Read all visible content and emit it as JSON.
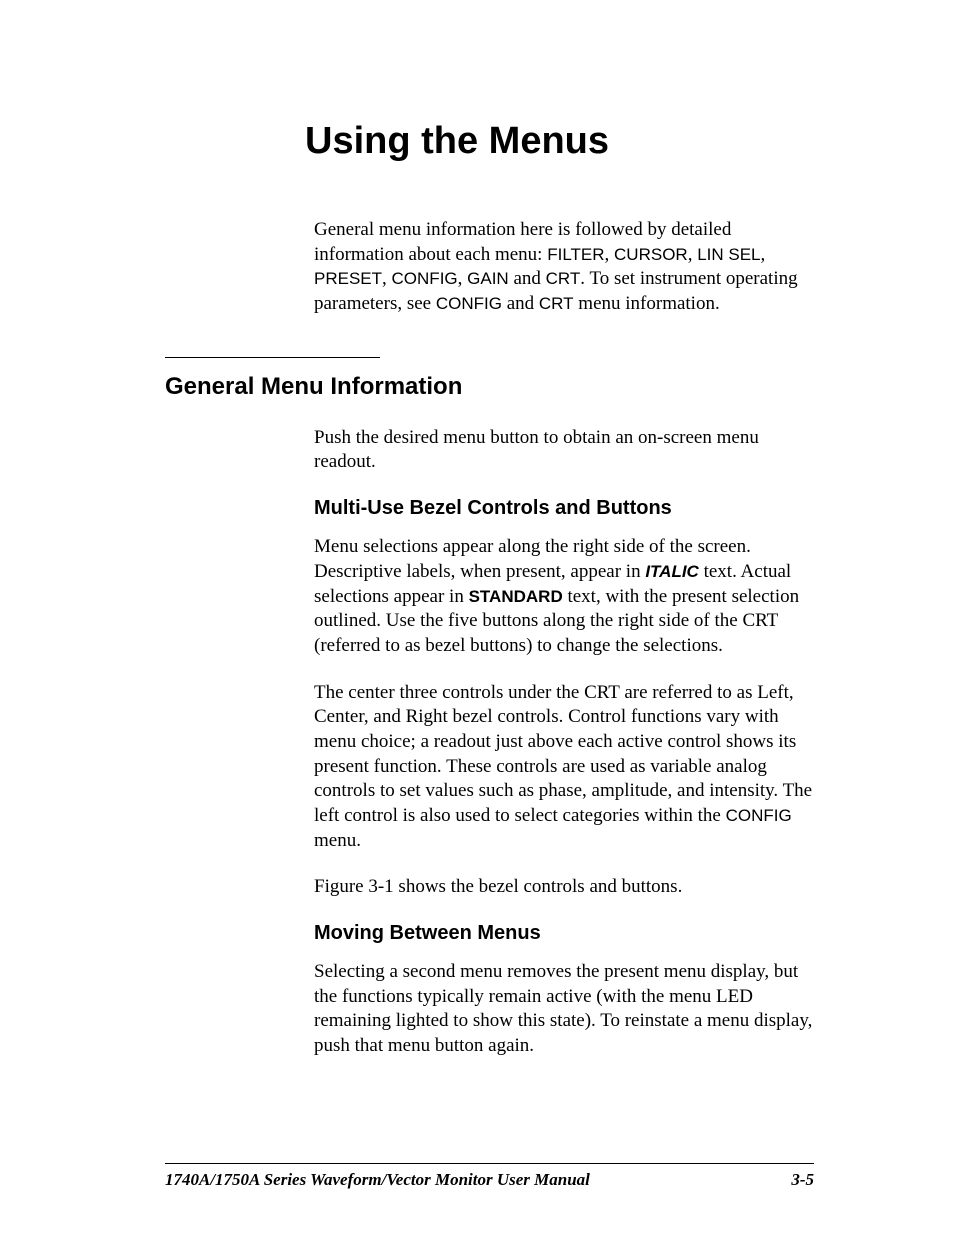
{
  "chapter": {
    "title": "Using the Menus"
  },
  "intro": {
    "text_parts": [
      "General menu information here is followed by detailed information about each menu: ",
      "FILTER",
      ", ",
      "CURSOR",
      ", ",
      "LIN SEL",
      ", ",
      "PRESET",
      ", ",
      "CONFIG",
      ", ",
      "GAIN",
      " and ",
      "CRT",
      ".   To set instrument operating parameters, see ",
      "CONFIG",
      " and ",
      "CRT",
      " menu information."
    ]
  },
  "section1": {
    "heading": "General Menu Information",
    "paragraph1": "Push the desired menu button to obtain an on-screen menu readout."
  },
  "subsection1": {
    "heading": "Multi-Use Bezel Controls and Buttons",
    "p1_parts": [
      "Menu selections appear along the right side of the screen. Descriptive labels, when present, appear in ",
      "ITALIC",
      " text.  Actual selections appear in ",
      "STANDARD",
      " text, with the present selection outlined. Use the five buttons along the right side of the CRT (referred to as bezel buttons) to change the selections."
    ],
    "p2_parts": [
      "The center three controls under the CRT are referred to as Left, Center, and Right bezel controls.  Control functions vary with menu choice; a readout just above each active control shows its present function.  These controls are used as variable analog controls to set values such as phase, amplitude, and intensity.  The left control is also used to select categories within the ",
      "CONFIG",
      " menu."
    ],
    "p3": "Figure 3-1 shows the bezel controls and buttons."
  },
  "subsection2": {
    "heading": "Moving Between Menus",
    "p1": "Selecting a second menu removes the present menu display, but the functions typically remain active (with the menu LED remaining lighted to show this state).  To reinstate a menu display, push that menu button again."
  },
  "footer": {
    "title": "1740A/1750A Series Waveform/Vector Monitor User Manual",
    "page": "3-5"
  }
}
